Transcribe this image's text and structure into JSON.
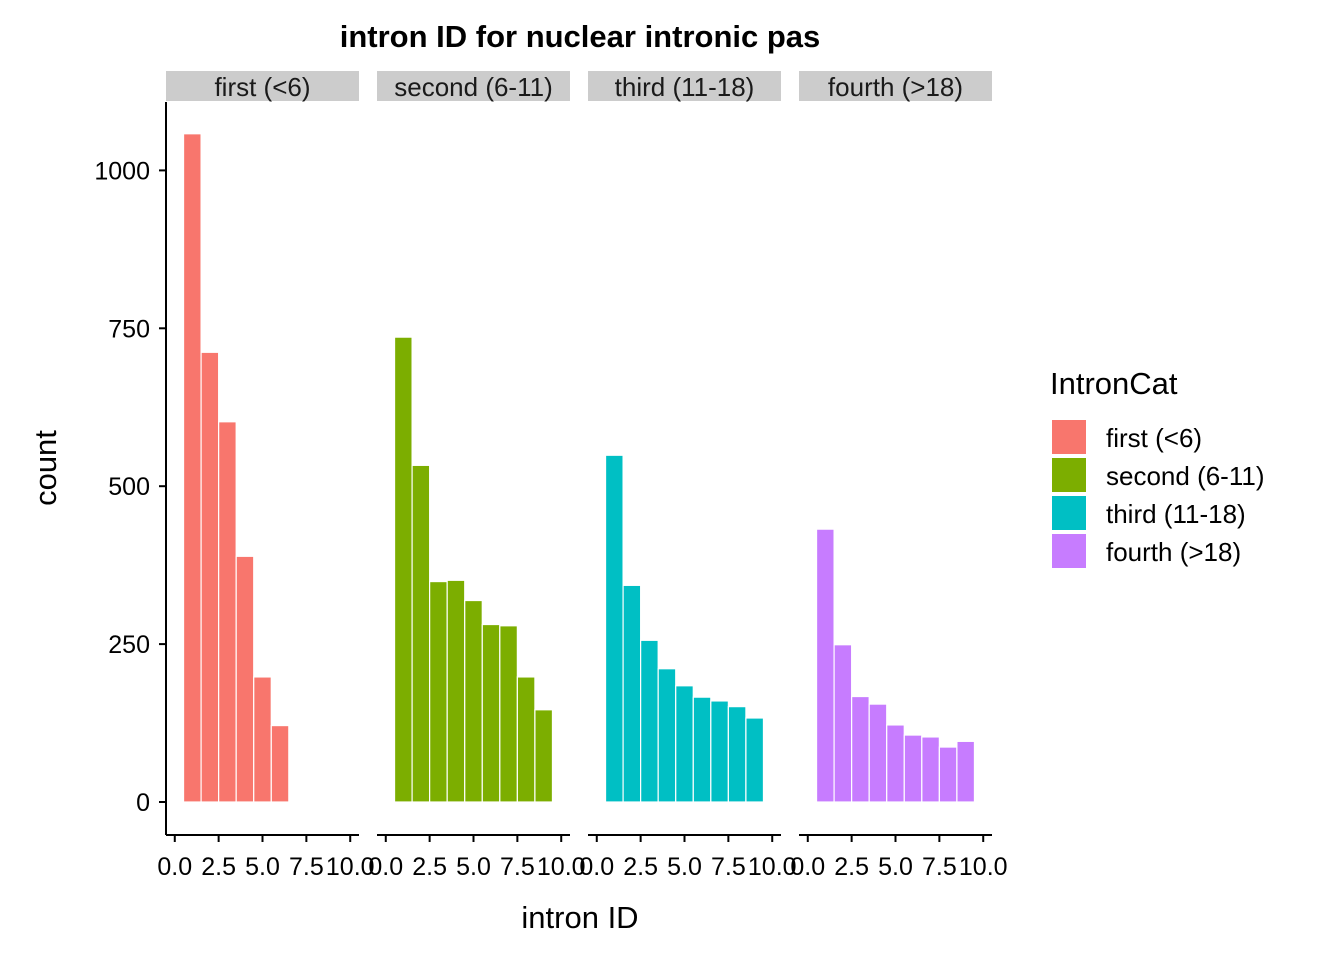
{
  "chart_data": {
    "type": "bar",
    "title": "intron ID for nuclear intronic pas",
    "xlabel": "intron ID",
    "ylabel": "count",
    "ylim": [
      0,
      1100
    ],
    "y_ticks": [
      0,
      250,
      500,
      750,
      1000
    ],
    "y_tick_labels": [
      "0",
      "250",
      "500",
      "750",
      "1000"
    ],
    "x_range": [
      -0.5,
      10.5
    ],
    "x_ticks": [
      0.0,
      2.5,
      5.0,
      7.5,
      10.0
    ],
    "x_tick_labels": [
      "0.0",
      "2.5",
      "5.0",
      "7.5",
      "10.0"
    ],
    "grid": false,
    "legend": {
      "title": "IntronCat",
      "placement": "right",
      "items": [
        "first (<6)",
        "second (6-11)",
        "third (11-18)",
        "fourth (>18)"
      ]
    },
    "facets": [
      {
        "label": "first (<6)",
        "color": "#F8766D",
        "bars": [
          {
            "x": 1,
            "count": 1058
          },
          {
            "x": 2,
            "count": 712
          },
          {
            "x": 3,
            "count": 602
          },
          {
            "x": 4,
            "count": 389
          },
          {
            "x": 5,
            "count": 198
          },
          {
            "x": 6,
            "count": 121
          }
        ]
      },
      {
        "label": "second (6-11)",
        "color": "#7CAE00",
        "bars": [
          {
            "x": 1,
            "count": 736
          },
          {
            "x": 2,
            "count": 533
          },
          {
            "x": 3,
            "count": 349
          },
          {
            "x": 4,
            "count": 351
          },
          {
            "x": 5,
            "count": 319
          },
          {
            "x": 6,
            "count": 281
          },
          {
            "x": 7,
            "count": 279
          },
          {
            "x": 8,
            "count": 198
          },
          {
            "x": 9,
            "count": 146
          }
        ]
      },
      {
        "label": "third (11-18)",
        "color": "#00BFC4",
        "bars": [
          {
            "x": 1,
            "count": 549
          },
          {
            "x": 2,
            "count": 343
          },
          {
            "x": 3,
            "count": 256
          },
          {
            "x": 4,
            "count": 211
          },
          {
            "x": 5,
            "count": 184
          },
          {
            "x": 6,
            "count": 166
          },
          {
            "x": 7,
            "count": 160
          },
          {
            "x": 8,
            "count": 151
          },
          {
            "x": 9,
            "count": 133
          }
        ]
      },
      {
        "label": "fourth (>18)",
        "color": "#C77CFF",
        "bars": [
          {
            "x": 1,
            "count": 432
          },
          {
            "x": 2,
            "count": 249
          },
          {
            "x": 3,
            "count": 167
          },
          {
            "x": 4,
            "count": 155
          },
          {
            "x": 5,
            "count": 122
          },
          {
            "x": 6,
            "count": 106
          },
          {
            "x": 7,
            "count": 103
          },
          {
            "x": 8,
            "count": 87
          },
          {
            "x": 9,
            "count": 96
          }
        ]
      }
    ]
  }
}
